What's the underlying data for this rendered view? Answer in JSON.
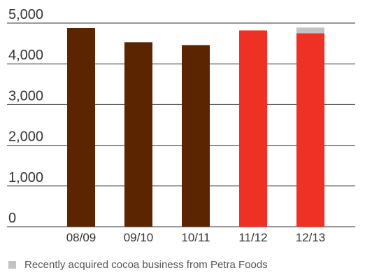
{
  "chart_data": {
    "type": "bar",
    "categories": [
      "08/09",
      "09/10",
      "10/11",
      "11/12",
      "12/13"
    ],
    "series": [
      {
        "values": [
          4880,
          4530,
          4460,
          4820,
          4750
        ]
      },
      {
        "name": "Recently acquired cocoa business from Petra Foods",
        "values": [
          0,
          0,
          0,
          0,
          140
        ]
      }
    ],
    "bar_colors": [
      "#5a2500",
      "#5a2500",
      "#5a2500",
      "#ee3124",
      "#ee3124"
    ],
    "acquired_color": "#c3c3c3",
    "y_ticks": [
      "0",
      "1,000",
      "2,000",
      "3,000",
      "4,000",
      "5,000"
    ],
    "ylim": [
      0,
      5000
    ],
    "grid": "horizontal",
    "legend": "bottom-left"
  }
}
